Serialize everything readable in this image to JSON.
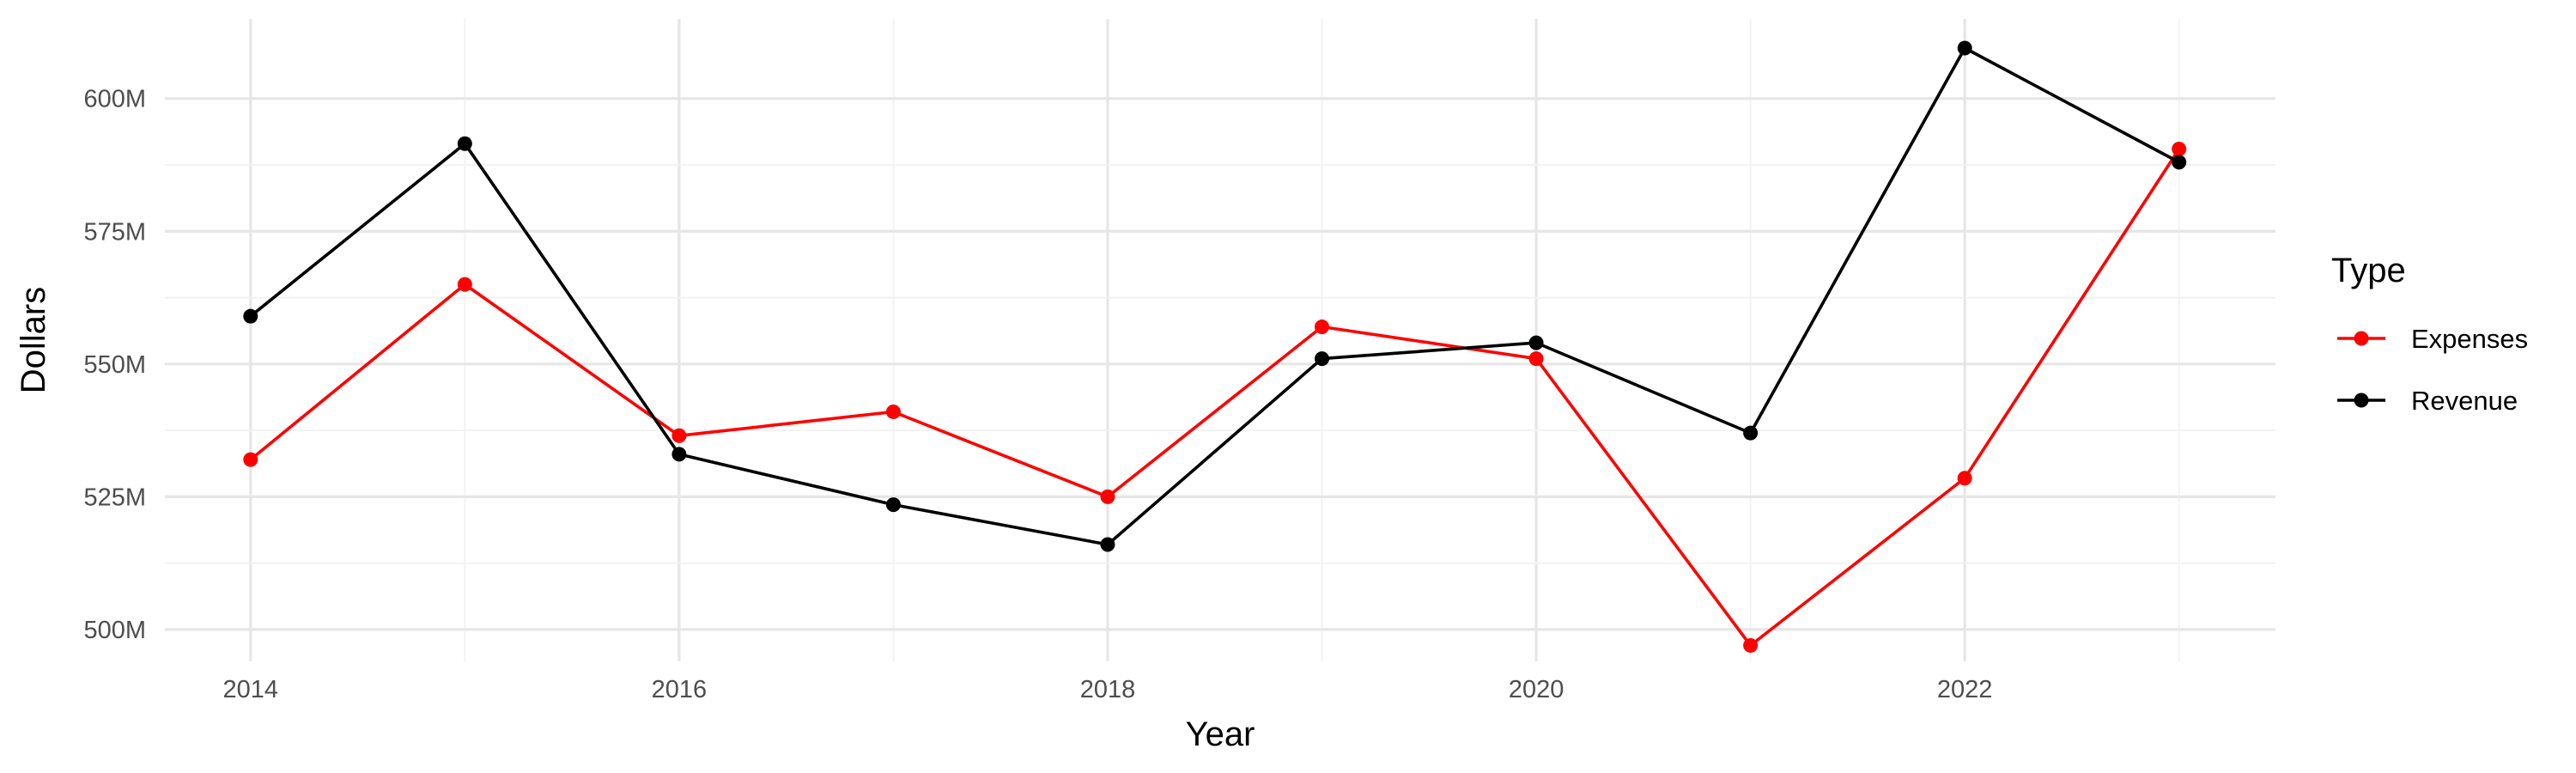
{
  "chart_data": {
    "type": "line",
    "title": "",
    "xlabel": "Year",
    "ylabel": "Dollars",
    "x": [
      2014,
      2015,
      2016,
      2017,
      2018,
      2019,
      2020,
      2021,
      2022,
      2023
    ],
    "xlim": [
      2013.6,
      2023.45
    ],
    "ylim": [
      494,
      615
    ],
    "x_ticks": [
      2014,
      2016,
      2018,
      2020,
      2022
    ],
    "x_tick_labels": [
      "2014",
      "2016",
      "2018",
      "2020",
      "2022"
    ],
    "y_ticks": [
      500,
      525,
      550,
      575,
      600
    ],
    "y_tick_labels": [
      "500M",
      "525M",
      "550M",
      "575M",
      "600M"
    ],
    "grid": true,
    "legend": {
      "title": "Type",
      "placement": "right"
    },
    "series": [
      {
        "name": "Expenses",
        "color": "#ff0000",
        "values": [
          532,
          565,
          536.5,
          541,
          525,
          557,
          551,
          497,
          528.5,
          590.5
        ]
      },
      {
        "name": "Revenue",
        "color": "#000000",
        "values": [
          559,
          591.5,
          533,
          523.5,
          516,
          551,
          554,
          537,
          609.5,
          588
        ]
      }
    ]
  }
}
